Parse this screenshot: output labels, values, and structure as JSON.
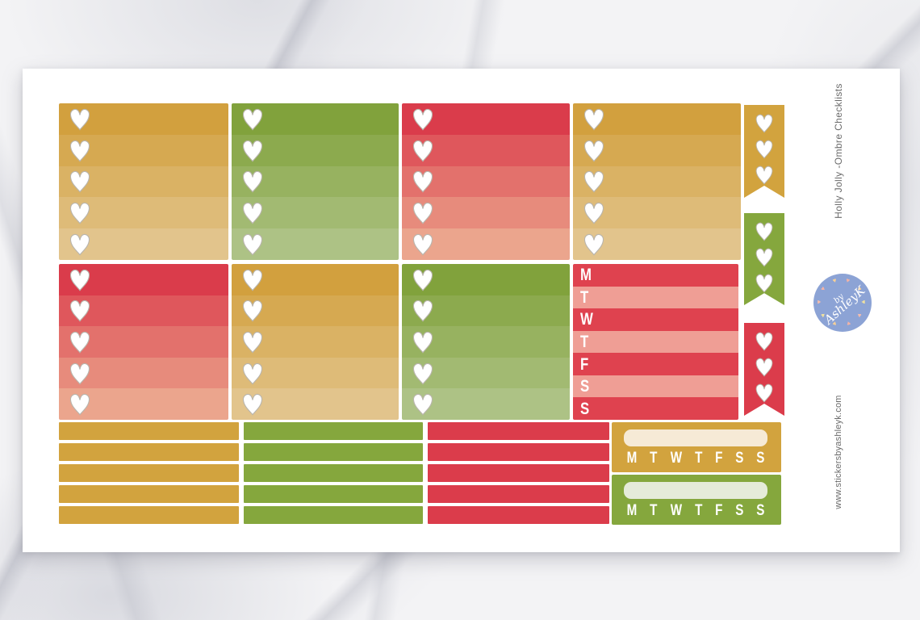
{
  "sheet": {
    "title_vertical": "Holly Jolly -Ombre Checklists",
    "website_vertical": "www.stickersbyashleyk.com",
    "logo": {
      "line1": "by",
      "line2": "AshleyK"
    },
    "weekday_letters": [
      "M",
      "T",
      "W",
      "T",
      "F",
      "S",
      "S"
    ],
    "checklist_boxes": [
      {
        "row": 1,
        "col": 1,
        "ombre": "gold",
        "rows": 5,
        "checkbox": "heart"
      },
      {
        "row": 1,
        "col": 2,
        "ombre": "green",
        "rows": 5,
        "checkbox": "heart"
      },
      {
        "row": 1,
        "col": 3,
        "ombre": "red",
        "rows": 5,
        "checkbox": "heart"
      },
      {
        "row": 1,
        "col": 4,
        "ombre": "gold",
        "rows": 5,
        "checkbox": "heart"
      },
      {
        "row": 2,
        "col": 1,
        "ombre": "red",
        "rows": 5,
        "checkbox": "heart"
      },
      {
        "row": 2,
        "col": 2,
        "ombre": "gold",
        "rows": 5,
        "checkbox": "heart"
      },
      {
        "row": 2,
        "col": 3,
        "ombre": "green",
        "rows": 5,
        "checkbox": "heart"
      }
    ],
    "flags": [
      {
        "color": "gold",
        "hearts": 3
      },
      {
        "color": "green",
        "hearts": 3
      },
      {
        "color": "red",
        "hearts": 3
      }
    ],
    "weekday_column": {
      "style": "alternating red/pink",
      "letters": [
        "M",
        "T",
        "W",
        "T",
        "F",
        "S",
        "S"
      ]
    },
    "strip_columns": [
      {
        "color": "gold",
        "count": 5
      },
      {
        "color": "green",
        "count": 5
      },
      {
        "color": "red",
        "count": 5
      }
    ],
    "week_headers": [
      {
        "color": "gold",
        "letters": [
          "M",
          "T",
          "W",
          "T",
          "F",
          "S",
          "S"
        ]
      },
      {
        "color": "green",
        "letters": [
          "M",
          "T",
          "W",
          "T",
          "F",
          "S",
          "S"
        ]
      }
    ]
  },
  "palette": {
    "ombre": {
      "gold": [
        "#d2a03e",
        "#d6a951",
        "#dab264",
        "#debb78",
        "#e2c48c"
      ],
      "green": [
        "#81a23c",
        "#8caa4e",
        "#97b260",
        "#a2ba72",
        "#adc285"
      ],
      "red": [
        "#da3c4b",
        "#df575c",
        "#e3716c",
        "#e78b7c",
        "#eba58d"
      ]
    },
    "solid": {
      "gold": "#d2a33e",
      "green": "#85a73d",
      "red": "#db3c4b"
    },
    "weekday": {
      "dark": "#df424f",
      "light": "#ef9e95"
    },
    "header_box": {
      "gold": "#f6ead6",
      "green": "#e5ebd9"
    },
    "heart_fill": "#ffffff",
    "heart_outline": "#b9b5ad",
    "logo_blue": "#8ca3d5",
    "logo_hearts": [
      "#f2b3a6",
      "#f7d097",
      "#efe1a0",
      "#f3bdae"
    ],
    "text_gray": "#6b6b6b",
    "sheet_white": "#ffffff",
    "marble_base": "#f3f3f5"
  }
}
